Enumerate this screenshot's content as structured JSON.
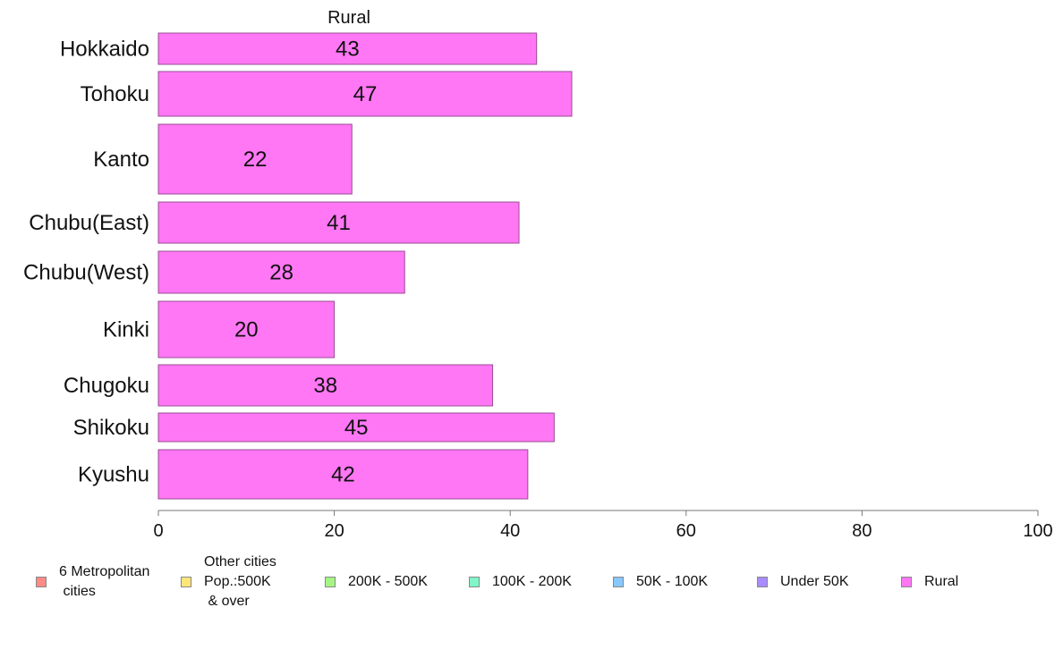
{
  "chart_data": {
    "type": "bar",
    "orientation": "horizontal",
    "title": "Rural",
    "categories": [
      "Hokkaido",
      "Tohoku",
      "Kanto",
      "Chubu(East)",
      "Chubu(West)",
      "Kinki",
      "Chugoku",
      "Shikoku",
      "Kyushu"
    ],
    "values": [
      43,
      47,
      22,
      41,
      28,
      20,
      38,
      45,
      42
    ],
    "bar_color": "#ff77f4",
    "xlim": [
      0,
      100
    ],
    "xticks": [
      "0",
      "20",
      "40",
      "60",
      "80",
      "100"
    ],
    "grid": false,
    "legend_position": "bottom"
  },
  "legend": [
    {
      "label": "6 Metropolitan\n cities",
      "color": "#ff8a86"
    },
    {
      "label": "Other cities\nPop.:500K\n & over",
      "color": "#ffe67a"
    },
    {
      "label": "200K - 500K",
      "color": "#a5f584"
    },
    {
      "label": "100K - 200K",
      "color": "#7ff5c8"
    },
    {
      "label": "50K - 100K",
      "color": "#86c8ff"
    },
    {
      "label": "Under 50K",
      "color": "#a98cff"
    },
    {
      "label": "Rural",
      "color": "#ff77f4"
    }
  ]
}
